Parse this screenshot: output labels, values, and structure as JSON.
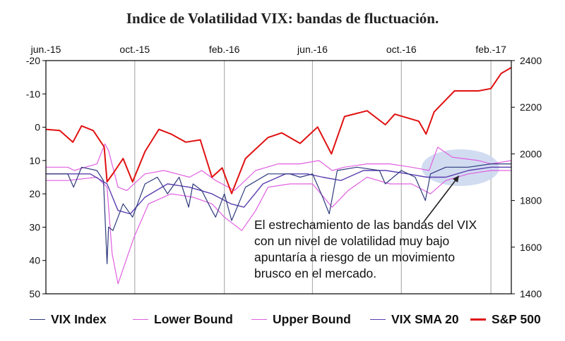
{
  "chart_data": {
    "type": "line",
    "title": "Indice de Volatilidad VIX: bandas de fluctuación.",
    "x_tick_labels": [
      "jun.-15",
      "oct.-15",
      "feb.-16",
      "jun.-16",
      "oct.-16",
      "feb.-17"
    ],
    "x_range": [
      "2015-06-01",
      "2017-03-01"
    ],
    "y_left": {
      "ticks": [
        -20,
        -10,
        0,
        10,
        20,
        30,
        40,
        50
      ],
      "range": [
        -20,
        50
      ],
      "inverted": true
    },
    "y_right": {
      "ticks": [
        2400,
        2200,
        2000,
        1800,
        1600,
        1400
      ],
      "range": [
        1400,
        2400
      ]
    },
    "grid": "vertical",
    "legend_position": "bottom",
    "series": [
      {
        "name": "VIX Index",
        "axis": "left",
        "color": "#2e3a7c",
        "width": 1.2,
        "points": [
          [
            "2015-06-01",
            14
          ],
          [
            "2015-07-01",
            14
          ],
          [
            "2015-07-09",
            18
          ],
          [
            "2015-07-20",
            12
          ],
          [
            "2015-08-10",
            13
          ],
          [
            "2015-08-19",
            16
          ],
          [
            "2015-08-24",
            41
          ],
          [
            "2015-08-26",
            30
          ],
          [
            "2015-09-01",
            31
          ],
          [
            "2015-09-15",
            23
          ],
          [
            "2015-09-28",
            27
          ],
          [
            "2015-10-15",
            17
          ],
          [
            "2015-11-01",
            15
          ],
          [
            "2015-11-15",
            20
          ],
          [
            "2015-12-01",
            15
          ],
          [
            "2015-12-14",
            24
          ],
          [
            "2015-12-20",
            17
          ],
          [
            "2016-01-01",
            19
          ],
          [
            "2016-01-15",
            25
          ],
          [
            "2016-01-20",
            27
          ],
          [
            "2016-02-01",
            20
          ],
          [
            "2016-02-11",
            28
          ],
          [
            "2016-03-01",
            18
          ],
          [
            "2016-04-01",
            14
          ],
          [
            "2016-05-01",
            14
          ],
          [
            "2016-05-15",
            15
          ],
          [
            "2016-06-01",
            14
          ],
          [
            "2016-06-15",
            21
          ],
          [
            "2016-06-24",
            26
          ],
          [
            "2016-07-05",
            13
          ],
          [
            "2016-08-01",
            12
          ],
          [
            "2016-09-01",
            13
          ],
          [
            "2016-09-09",
            17
          ],
          [
            "2016-10-01",
            13
          ],
          [
            "2016-10-20",
            15
          ],
          [
            "2016-11-03",
            22
          ],
          [
            "2016-11-10",
            14
          ],
          [
            "2016-12-01",
            12
          ],
          [
            "2017-01-01",
            12
          ],
          [
            "2017-02-01",
            11
          ],
          [
            "2017-03-01",
            11
          ]
        ]
      },
      {
        "name": "Lower Bound",
        "axis": "left",
        "color": "#e060e0",
        "width": 1.2,
        "points": [
          [
            "2015-06-01",
            16
          ],
          [
            "2015-07-01",
            16
          ],
          [
            "2015-08-10",
            15
          ],
          [
            "2015-08-24",
            18
          ],
          [
            "2015-08-31",
            38
          ],
          [
            "2015-09-08",
            47
          ],
          [
            "2015-09-30",
            33
          ],
          [
            "2015-10-20",
            23
          ],
          [
            "2015-11-20",
            20
          ],
          [
            "2015-12-20",
            21
          ],
          [
            "2016-01-15",
            23
          ],
          [
            "2016-02-01",
            27
          ],
          [
            "2016-02-25",
            31
          ],
          [
            "2016-03-15",
            25
          ],
          [
            "2016-04-01",
            18
          ],
          [
            "2016-05-01",
            17
          ],
          [
            "2016-06-01",
            17
          ],
          [
            "2016-06-28",
            24
          ],
          [
            "2016-07-20",
            19
          ],
          [
            "2016-08-15",
            15
          ],
          [
            "2016-09-15",
            17
          ],
          [
            "2016-10-15",
            17
          ],
          [
            "2016-11-10",
            20
          ],
          [
            "2016-12-01",
            16
          ],
          [
            "2017-01-01",
            14
          ],
          [
            "2017-02-01",
            13
          ],
          [
            "2017-03-01",
            13
          ]
        ]
      },
      {
        "name": "Upper Bound",
        "axis": "left",
        "color": "#e060e0",
        "width": 1.2,
        "points": [
          [
            "2015-06-01",
            12
          ],
          [
            "2015-07-01",
            12
          ],
          [
            "2015-07-10",
            13
          ],
          [
            "2015-08-10",
            11
          ],
          [
            "2015-08-21",
            5
          ],
          [
            "2015-08-26",
            7
          ],
          [
            "2015-09-08",
            18
          ],
          [
            "2015-09-20",
            19
          ],
          [
            "2015-10-15",
            14
          ],
          [
            "2015-11-10",
            13
          ],
          [
            "2015-12-15",
            15
          ],
          [
            "2016-01-01",
            13
          ],
          [
            "2016-01-20",
            16
          ],
          [
            "2016-02-15",
            19
          ],
          [
            "2016-03-15",
            13
          ],
          [
            "2016-04-15",
            11
          ],
          [
            "2016-05-15",
            11
          ],
          [
            "2016-06-10",
            10
          ],
          [
            "2016-06-28",
            13
          ],
          [
            "2016-07-15",
            12
          ],
          [
            "2016-08-15",
            11
          ],
          [
            "2016-09-15",
            11
          ],
          [
            "2016-10-15",
            12
          ],
          [
            "2016-11-08",
            13
          ],
          [
            "2016-11-20",
            6
          ],
          [
            "2016-12-10",
            9
          ],
          [
            "2017-01-15",
            10
          ],
          [
            "2017-02-01",
            11
          ],
          [
            "2017-03-01",
            10
          ]
        ]
      },
      {
        "name": "VIX SMA 20",
        "axis": "left",
        "color": "#5a3fb0",
        "width": 1.4,
        "points": [
          [
            "2015-06-01",
            14
          ],
          [
            "2015-07-01",
            14
          ],
          [
            "2015-08-01",
            14
          ],
          [
            "2015-08-24",
            17
          ],
          [
            "2015-09-08",
            25
          ],
          [
            "2015-09-25",
            26
          ],
          [
            "2015-10-15",
            21
          ],
          [
            "2015-11-15",
            17
          ],
          [
            "2015-12-15",
            18
          ],
          [
            "2016-01-15",
            20
          ],
          [
            "2016-02-10",
            23
          ],
          [
            "2016-02-28",
            24
          ],
          [
            "2016-03-25",
            17
          ],
          [
            "2016-04-25",
            14
          ],
          [
            "2016-05-25",
            14
          ],
          [
            "2016-06-15",
            15
          ],
          [
            "2016-07-10",
            16
          ],
          [
            "2016-08-10",
            13
          ],
          [
            "2016-09-10",
            13
          ],
          [
            "2016-10-10",
            14
          ],
          [
            "2016-11-05",
            15
          ],
          [
            "2016-12-01",
            15
          ],
          [
            "2017-01-01",
            13
          ],
          [
            "2017-02-01",
            12
          ],
          [
            "2017-03-01",
            12
          ]
        ]
      },
      {
        "name": "S&P 500",
        "axis": "right",
        "color": "#e01010",
        "width": 2,
        "points": [
          [
            "2015-06-01",
            2105
          ],
          [
            "2015-06-20",
            2100
          ],
          [
            "2015-07-08",
            2050
          ],
          [
            "2015-07-20",
            2120
          ],
          [
            "2015-08-05",
            2100
          ],
          [
            "2015-08-20",
            2030
          ],
          [
            "2015-08-24",
            1880
          ],
          [
            "2015-09-01",
            1915
          ],
          [
            "2015-09-15",
            1980
          ],
          [
            "2015-09-28",
            1880
          ],
          [
            "2015-10-15",
            2010
          ],
          [
            "2015-11-03",
            2105
          ],
          [
            "2015-11-20",
            2085
          ],
          [
            "2015-12-10",
            2050
          ],
          [
            "2015-12-30",
            2060
          ],
          [
            "2016-01-15",
            1900
          ],
          [
            "2016-01-29",
            1940
          ],
          [
            "2016-02-11",
            1830
          ],
          [
            "2016-03-01",
            1980
          ],
          [
            "2016-04-01",
            2070
          ],
          [
            "2016-04-20",
            2090
          ],
          [
            "2016-05-15",
            2045
          ],
          [
            "2016-06-08",
            2115
          ],
          [
            "2016-06-27",
            2000
          ],
          [
            "2016-07-15",
            2160
          ],
          [
            "2016-08-15",
            2185
          ],
          [
            "2016-09-09",
            2125
          ],
          [
            "2016-09-22",
            2170
          ],
          [
            "2016-10-25",
            2140
          ],
          [
            "2016-11-04",
            2085
          ],
          [
            "2016-11-15",
            2180
          ],
          [
            "2016-12-13",
            2270
          ],
          [
            "2017-01-15",
            2270
          ],
          [
            "2017-02-01",
            2280
          ],
          [
            "2017-02-15",
            2345
          ],
          [
            "2017-03-01",
            2370
          ]
        ]
      }
    ]
  },
  "annotation": {
    "lines": [
      "El estrechamiento de las bandas del VIX",
      "con un nivel de volatilidad muy bajo",
      "apuntaría a riesgo de un movimiento",
      "brusco en el mercado."
    ]
  },
  "colors": {
    "highlight_ellipse": "#c9d6ee",
    "axis": "#000000",
    "grid": "#b0b0b0"
  }
}
